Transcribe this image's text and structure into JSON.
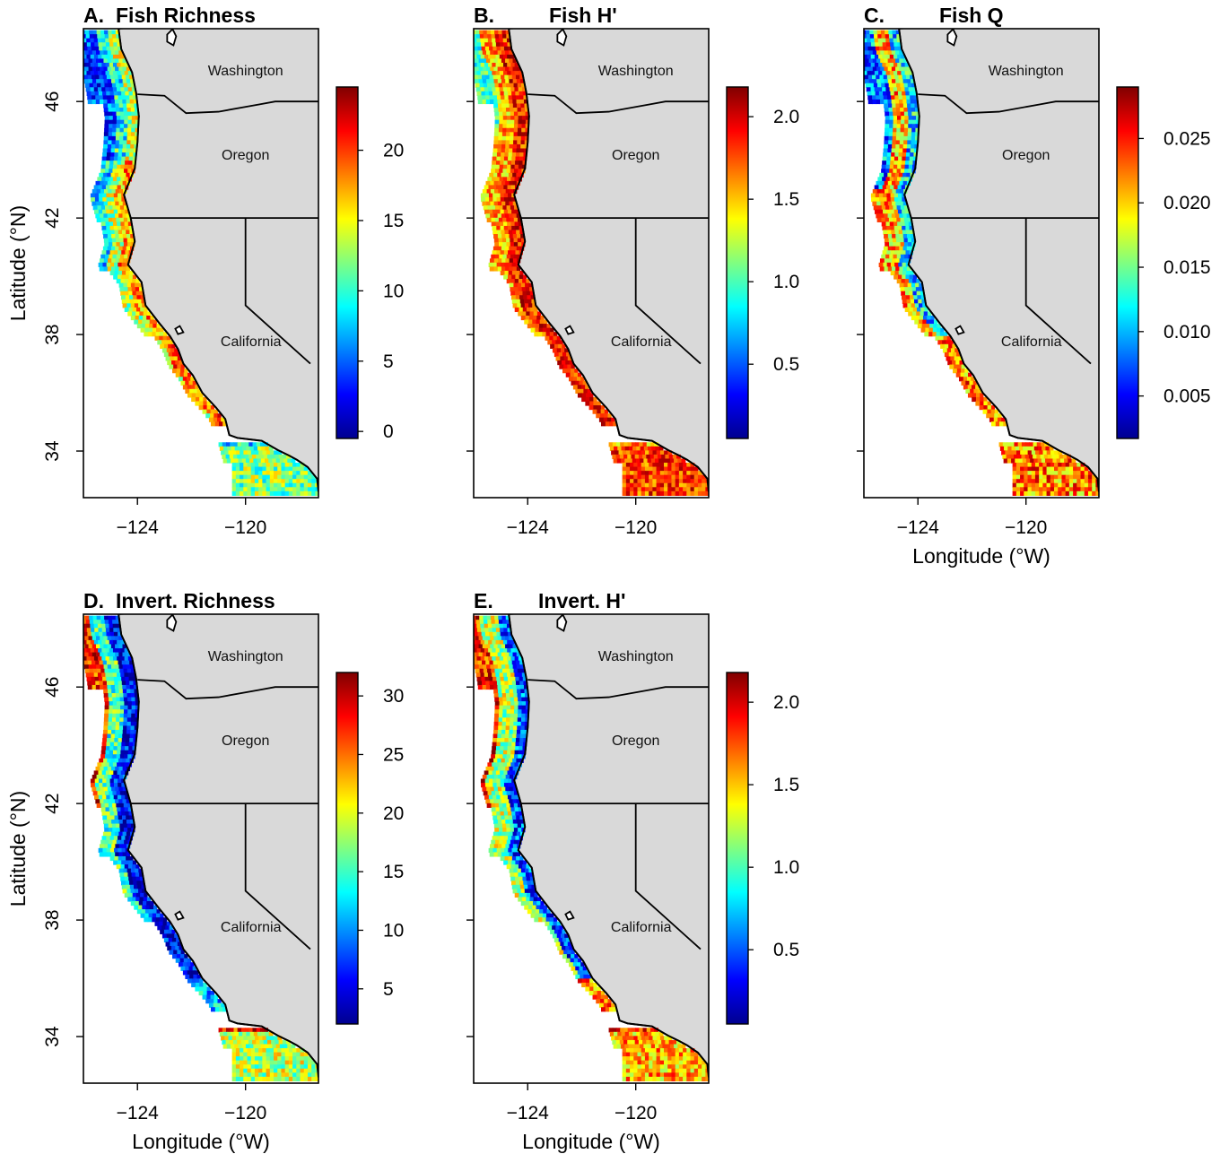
{
  "colors": {
    "land": "#d9d9d9",
    "background": "#ffffff",
    "border": "#000000",
    "scale": [
      "#00008f",
      "#0000ff",
      "#0080ff",
      "#00ffff",
      "#80ff80",
      "#ffff00",
      "#ff8000",
      "#ff0000",
      "#800000"
    ]
  },
  "state_labels": {
    "washington": "Washington",
    "oregon": "Oregon",
    "california": "California"
  },
  "axes": {
    "xlabel": "Longitude (°W)",
    "ylabel": "Latitude (°N)",
    "x_ticks": [
      "−124",
      "−120"
    ],
    "y_ticks": [
      "46",
      "42",
      "38",
      "34"
    ],
    "xlim": [
      -126,
      -117.3
    ],
    "ylim": [
      32.4,
      48.5
    ]
  },
  "chart_data": [
    {
      "type": "heatmap",
      "letter": "A.",
      "name": "Fish Richness",
      "colorbar": {
        "min": -0.5,
        "max": 24.5,
        "ticks": [
          "0",
          "5",
          "10",
          "15",
          "20"
        ],
        "tick_values": [
          0,
          5,
          10,
          15,
          20
        ]
      }
    },
    {
      "type": "heatmap",
      "letter": "B.",
      "name": "Fish H'",
      "colorbar": {
        "min": 0.05,
        "max": 2.18,
        "ticks": [
          "0.5",
          "1.0",
          "1.5",
          "2.0"
        ],
        "tick_values": [
          0.5,
          1.0,
          1.5,
          2.0
        ]
      }
    },
    {
      "type": "heatmap",
      "letter": "C.",
      "name": "Fish Q",
      "colorbar": {
        "min": 0.0017,
        "max": 0.029,
        "ticks": [
          "0.005",
          "0.010",
          "0.015",
          "0.020",
          "0.025"
        ],
        "tick_values": [
          0.005,
          0.01,
          0.015,
          0.02,
          0.025
        ]
      }
    },
    {
      "type": "heatmap",
      "letter": "D.",
      "name": "Invert. Richness",
      "colorbar": {
        "min": 2,
        "max": 32,
        "ticks": [
          "5",
          "10",
          "15",
          "20",
          "25",
          "30"
        ],
        "tick_values": [
          5,
          10,
          15,
          20,
          25,
          30
        ]
      }
    },
    {
      "type": "heatmap",
      "letter": "E.",
      "name": "Invert. H'",
      "colorbar": {
        "min": 0.05,
        "max": 2.18,
        "ticks": [
          "0.5",
          "1.0",
          "1.5",
          "2.0"
        ],
        "tick_values": [
          0.5,
          1.0,
          1.5,
          2.0
        ]
      }
    }
  ]
}
